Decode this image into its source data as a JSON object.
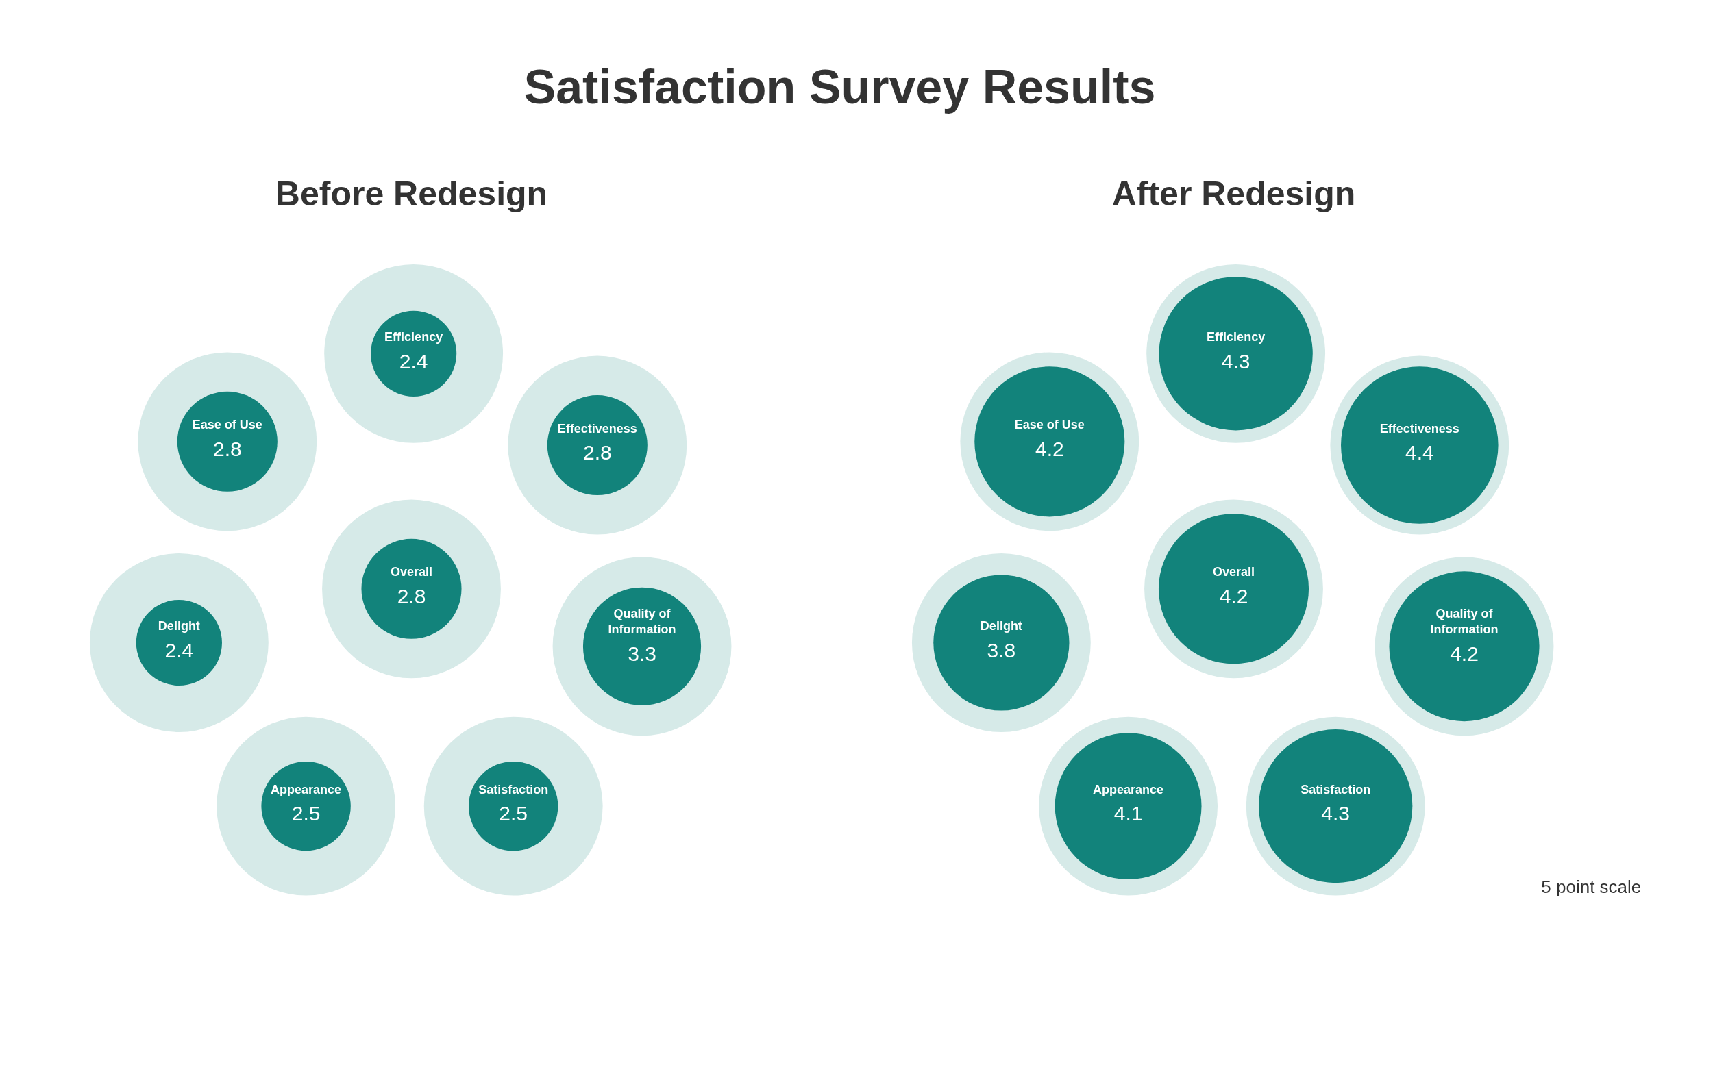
{
  "chart_data": [
    {
      "type": "other",
      "title": "Satisfaction Survey Results"
    },
    {
      "type": "other",
      "title": "Before Redesign",
      "categories": [
        "Efficiency",
        "Ease of Use",
        "Effectiveness",
        "Overall",
        "Delight",
        "Quality of Information",
        "Appearance",
        "Satisfaction"
      ],
      "values": [
        2.4,
        2.8,
        2.8,
        2.8,
        2.4,
        3.3,
        2.5,
        2.5
      ],
      "color": "#12837b",
      "data_labels": true
    },
    {
      "type": "other",
      "title": "After Redesign",
      "categories": [
        "Efficiency",
        "Ease of Use",
        "Effectiveness",
        "Overall",
        "Delight",
        "Quality of Information",
        "Appearance",
        "Satisfaction"
      ],
      "values": [
        4.3,
        4.2,
        4.4,
        4.2,
        3.8,
        4.2,
        4.1,
        4.3
      ],
      "color": "#12837b",
      "data_labels": true,
      "annotations": [
        "5 point scale"
      ]
    }
  ]
}
